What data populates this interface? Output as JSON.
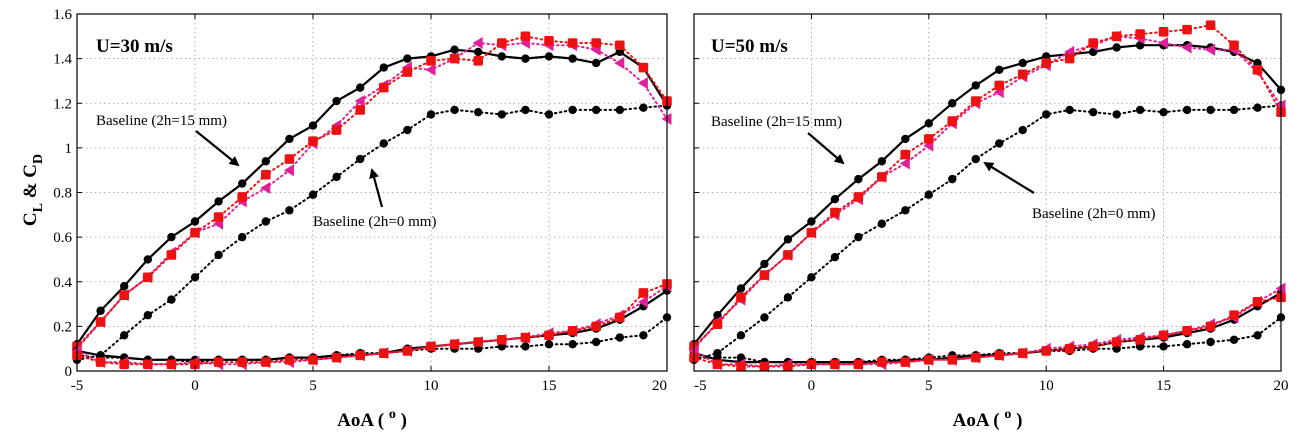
{
  "chart_data": [
    {
      "type": "scatter",
      "title": "U=30 m/s",
      "xlabel": "AoA ( o )",
      "ylabel": "C L & C D",
      "xlim": [
        -5,
        20
      ],
      "ylim": [
        0,
        1.6
      ],
      "xticks": [
        "-5",
        "0",
        "5",
        "10",
        "15",
        "20"
      ],
      "yticks": [
        "0",
        "0.2",
        "0.4",
        "0.6",
        "0.8",
        "1",
        "1.2",
        "1.4",
        "1.6"
      ],
      "grid": true,
      "annotations": [
        {
          "text": "Baseline (2h=15 mm)",
          "points_to": [
            2,
            0.84
          ]
        },
        {
          "text": "Baseline (2h=0 mm)",
          "points_to": [
            8,
            0.95
          ]
        }
      ],
      "series": [
        {
          "id": "base15_cl",
          "color": "#000000",
          "marker": "circle",
          "line": "solid",
          "x": [
            -5,
            -4,
            -3,
            -2,
            -1,
            0,
            1,
            2,
            3,
            4,
            5,
            6,
            7,
            8,
            9,
            10,
            11,
            12,
            13,
            14,
            15,
            16,
            17,
            18,
            19,
            20
          ],
          "y": [
            0.12,
            0.27,
            0.38,
            0.5,
            0.6,
            0.67,
            0.76,
            0.84,
            0.94,
            1.04,
            1.1,
            1.21,
            1.27,
            1.36,
            1.4,
            1.41,
            1.44,
            1.43,
            1.41,
            1.4,
            1.41,
            1.4,
            1.38,
            1.43,
            1.36,
            1.19
          ]
        },
        {
          "id": "base0_cl",
          "color": "#000000",
          "marker": "circle",
          "line": "dotted",
          "x": [
            -5,
            -4,
            -3,
            -2,
            -1,
            0,
            1,
            2,
            3,
            4,
            5,
            6,
            7,
            8,
            9,
            10,
            11,
            12,
            13,
            14,
            15,
            16,
            17,
            18,
            19,
            20
          ],
          "y": [
            0.05,
            0.07,
            0.16,
            0.25,
            0.32,
            0.42,
            0.52,
            0.6,
            0.67,
            0.72,
            0.79,
            0.87,
            0.95,
            1.02,
            1.08,
            1.15,
            1.17,
            1.16,
            1.15,
            1.17,
            1.15,
            1.17,
            1.17,
            1.17,
            1.18,
            1.19
          ]
        },
        {
          "id": "magenta_cl",
          "color": "#e0209a",
          "marker": "triangle-left",
          "line": "dotted",
          "x": [
            -5,
            -4,
            -3,
            -2,
            -1,
            0,
            1,
            2,
            3,
            4,
            5,
            6,
            7,
            8,
            9,
            10,
            11,
            12,
            13,
            14,
            15,
            16,
            17,
            18,
            19,
            20
          ],
          "y": [
            0.1,
            0.22,
            0.34,
            0.42,
            0.53,
            0.62,
            0.66,
            0.76,
            0.82,
            0.9,
            1.02,
            1.1,
            1.21,
            1.28,
            1.36,
            1.35,
            1.4,
            1.47,
            1.46,
            1.47,
            1.46,
            1.46,
            1.44,
            1.38,
            1.29,
            1.13
          ]
        },
        {
          "id": "red_cl",
          "color": "#ee1111",
          "marker": "square",
          "line": "dotted",
          "x": [
            -5,
            -4,
            -3,
            -2,
            -1,
            0,
            1,
            2,
            3,
            4,
            5,
            6,
            7,
            8,
            9,
            10,
            11,
            12,
            13,
            14,
            15,
            16,
            17,
            18,
            19,
            20
          ],
          "y": [
            0.11,
            0.22,
            0.34,
            0.42,
            0.52,
            0.62,
            0.69,
            0.78,
            0.88,
            0.95,
            1.03,
            1.08,
            1.17,
            1.27,
            1.34,
            1.39,
            1.4,
            1.39,
            1.47,
            1.5,
            1.48,
            1.47,
            1.47,
            1.46,
            1.36,
            1.21
          ]
        },
        {
          "id": "base15_cd",
          "color": "#000000",
          "marker": "circle",
          "line": "solid",
          "x": [
            -5,
            -4,
            -3,
            -2,
            -1,
            0,
            1,
            2,
            3,
            4,
            5,
            6,
            7,
            8,
            9,
            10,
            11,
            12,
            13,
            14,
            15,
            16,
            17,
            18,
            19,
            20
          ],
          "y": [
            0.09,
            0.07,
            0.06,
            0.05,
            0.05,
            0.05,
            0.05,
            0.05,
            0.05,
            0.06,
            0.06,
            0.07,
            0.07,
            0.08,
            0.1,
            0.11,
            0.12,
            0.13,
            0.14,
            0.15,
            0.16,
            0.17,
            0.19,
            0.23,
            0.29,
            0.36
          ]
        },
        {
          "id": "base0_cd",
          "color": "#000000",
          "marker": "circle",
          "line": "dotted",
          "x": [
            -5,
            -4,
            -3,
            -2,
            -1,
            0,
            1,
            2,
            3,
            4,
            5,
            6,
            7,
            8,
            9,
            10,
            11,
            12,
            13,
            14,
            15,
            16,
            17,
            18,
            19,
            20
          ],
          "y": [
            0.07,
            0.06,
            0.06,
            0.05,
            0.05,
            0.04,
            0.05,
            0.05,
            0.05,
            0.06,
            0.06,
            0.07,
            0.08,
            0.08,
            0.09,
            0.1,
            0.1,
            0.1,
            0.11,
            0.11,
            0.12,
            0.12,
            0.13,
            0.15,
            0.16,
            0.24
          ]
        },
        {
          "id": "magenta_cd",
          "color": "#e0209a",
          "marker": "triangle-left",
          "line": "dotted",
          "x": [
            -5,
            -4,
            -3,
            -2,
            -1,
            0,
            1,
            2,
            3,
            4,
            5,
            6,
            7,
            8,
            9,
            10,
            11,
            12,
            13,
            14,
            15,
            16,
            17,
            18,
            19,
            20
          ],
          "y": [
            0.09,
            0.04,
            0.04,
            0.03,
            0.03,
            0.04,
            0.03,
            0.03,
            0.04,
            0.04,
            0.05,
            0.06,
            0.07,
            0.08,
            0.09,
            0.11,
            0.12,
            0.13,
            0.14,
            0.15,
            0.17,
            0.18,
            0.21,
            0.25,
            0.31,
            0.38
          ]
        },
        {
          "id": "red_cd",
          "color": "#ee1111",
          "marker": "square",
          "line": "dotted",
          "x": [
            -5,
            -4,
            -3,
            -2,
            -1,
            0,
            1,
            2,
            3,
            4,
            5,
            6,
            7,
            8,
            9,
            10,
            11,
            12,
            13,
            14,
            15,
            16,
            17,
            18,
            19,
            20
          ],
          "y": [
            0.07,
            0.04,
            0.03,
            0.03,
            0.03,
            0.03,
            0.04,
            0.04,
            0.04,
            0.05,
            0.05,
            0.06,
            0.07,
            0.08,
            0.09,
            0.11,
            0.12,
            0.13,
            0.14,
            0.15,
            0.16,
            0.18,
            0.2,
            0.24,
            0.35,
            0.39
          ]
        }
      ]
    },
    {
      "type": "scatter",
      "title": "U=50 m/s",
      "xlabel": "AoA ( o )",
      "xlim": [
        -5,
        20
      ],
      "ylim": [
        0,
        1.6
      ],
      "xticks": [
        "-5",
        "0",
        "5",
        "10",
        "15",
        "20"
      ],
      "grid": true,
      "annotations": [
        {
          "text": "Baseline (2h=15 mm)",
          "points_to": [
            2,
            0.85
          ]
        },
        {
          "text": "Baseline (2h=0 mm)",
          "points_to": [
            8,
            0.95
          ]
        }
      ],
      "series": [
        {
          "id": "base15_cl",
          "color": "#000000",
          "marker": "circle",
          "line": "solid",
          "x": [
            -5,
            -4,
            -3,
            -2,
            -1,
            0,
            1,
            2,
            3,
            4,
            5,
            6,
            7,
            8,
            9,
            10,
            11,
            12,
            13,
            14,
            15,
            16,
            17,
            18,
            19,
            20
          ],
          "y": [
            0.12,
            0.25,
            0.37,
            0.48,
            0.59,
            0.67,
            0.77,
            0.86,
            0.94,
            1.04,
            1.11,
            1.2,
            1.28,
            1.35,
            1.38,
            1.41,
            1.42,
            1.43,
            1.45,
            1.46,
            1.46,
            1.46,
            1.45,
            1.43,
            1.38,
            1.26
          ]
        },
        {
          "id": "base0_cl",
          "color": "#000000",
          "marker": "circle",
          "line": "dotted",
          "x": [
            -5,
            -4,
            -3,
            -2,
            -1,
            0,
            1,
            2,
            3,
            4,
            5,
            6,
            7,
            8,
            9,
            10,
            11,
            12,
            13,
            14,
            15,
            16,
            17,
            18,
            19,
            20
          ],
          "y": [
            0.05,
            0.08,
            0.16,
            0.24,
            0.33,
            0.42,
            0.51,
            0.6,
            0.66,
            0.72,
            0.79,
            0.86,
            0.95,
            1.02,
            1.08,
            1.15,
            1.17,
            1.16,
            1.15,
            1.17,
            1.16,
            1.17,
            1.17,
            1.17,
            1.18,
            1.19
          ]
        },
        {
          "id": "magenta_cl",
          "color": "#e0209a",
          "marker": "triangle-left",
          "line": "dotted",
          "x": [
            -5,
            -4,
            -3,
            -2,
            -1,
            0,
            1,
            2,
            3,
            4,
            5,
            6,
            7,
            8,
            9,
            10,
            11,
            12,
            13,
            14,
            15,
            16,
            17,
            18,
            19,
            20
          ],
          "y": [
            0.1,
            0.22,
            0.32,
            0.43,
            0.52,
            0.62,
            0.7,
            0.77,
            0.87,
            0.93,
            1.01,
            1.11,
            1.2,
            1.25,
            1.32,
            1.37,
            1.43,
            1.46,
            1.5,
            1.49,
            1.47,
            1.45,
            1.44,
            1.44,
            1.34,
            1.19
          ]
        },
        {
          "id": "red_cl",
          "color": "#ee1111",
          "marker": "square",
          "line": "dotted",
          "x": [
            -5,
            -4,
            -3,
            -2,
            -1,
            0,
            1,
            2,
            3,
            4,
            5,
            6,
            7,
            8,
            9,
            10,
            11,
            12,
            13,
            14,
            15,
            16,
            17,
            18,
            19,
            20
          ],
          "y": [
            0.11,
            0.21,
            0.33,
            0.43,
            0.52,
            0.62,
            0.71,
            0.78,
            0.87,
            0.97,
            1.04,
            1.12,
            1.21,
            1.28,
            1.33,
            1.38,
            1.4,
            1.47,
            1.5,
            1.51,
            1.52,
            1.53,
            1.55,
            1.46,
            1.35,
            1.16
          ]
        },
        {
          "id": "base15_cd",
          "color": "#000000",
          "marker": "circle",
          "line": "solid",
          "x": [
            -5,
            -4,
            -3,
            -2,
            -1,
            0,
            1,
            2,
            3,
            4,
            5,
            6,
            7,
            8,
            9,
            10,
            11,
            12,
            13,
            14,
            15,
            16,
            17,
            18,
            19,
            20
          ],
          "y": [
            0.08,
            0.05,
            0.04,
            0.04,
            0.04,
            0.04,
            0.04,
            0.04,
            0.04,
            0.05,
            0.05,
            0.06,
            0.07,
            0.07,
            0.08,
            0.09,
            0.1,
            0.11,
            0.13,
            0.14,
            0.15,
            0.17,
            0.19,
            0.23,
            0.29,
            0.35
          ]
        },
        {
          "id": "base0_cd",
          "color": "#000000",
          "marker": "circle",
          "line": "dotted",
          "x": [
            -5,
            -4,
            -3,
            -2,
            -1,
            0,
            1,
            2,
            3,
            4,
            5,
            6,
            7,
            8,
            9,
            10,
            11,
            12,
            13,
            14,
            15,
            16,
            17,
            18,
            19,
            20
          ],
          "y": [
            0.06,
            0.06,
            0.06,
            0.04,
            0.04,
            0.04,
            0.04,
            0.04,
            0.05,
            0.05,
            0.06,
            0.07,
            0.07,
            0.08,
            0.08,
            0.09,
            0.09,
            0.1,
            0.1,
            0.11,
            0.11,
            0.12,
            0.13,
            0.14,
            0.16,
            0.24
          ]
        },
        {
          "id": "magenta_cd",
          "color": "#e0209a",
          "marker": "triangle-left",
          "line": "dotted",
          "x": [
            -5,
            -4,
            -3,
            -2,
            -1,
            0,
            1,
            2,
            3,
            4,
            5,
            6,
            7,
            8,
            9,
            10,
            11,
            12,
            13,
            14,
            15,
            16,
            17,
            18,
            19,
            20
          ],
          "y": [
            0.09,
            0.03,
            0.03,
            0.02,
            0.03,
            0.03,
            0.03,
            0.03,
            0.03,
            0.04,
            0.05,
            0.05,
            0.06,
            0.07,
            0.08,
            0.1,
            0.11,
            0.12,
            0.14,
            0.15,
            0.16,
            0.18,
            0.21,
            0.24,
            0.31,
            0.37
          ]
        },
        {
          "id": "red_cd",
          "color": "#ee1111",
          "marker": "square",
          "line": "dotted",
          "x": [
            -5,
            -4,
            -3,
            -2,
            -1,
            0,
            1,
            2,
            3,
            4,
            5,
            6,
            7,
            8,
            9,
            10,
            11,
            12,
            13,
            14,
            15,
            16,
            17,
            18,
            19,
            20
          ],
          "y": [
            0.06,
            0.03,
            0.02,
            0.02,
            0.02,
            0.03,
            0.03,
            0.03,
            0.04,
            0.04,
            0.05,
            0.05,
            0.06,
            0.07,
            0.08,
            0.09,
            0.1,
            0.11,
            0.13,
            0.14,
            0.16,
            0.18,
            0.2,
            0.25,
            0.31,
            0.33
          ]
        }
      ]
    }
  ]
}
